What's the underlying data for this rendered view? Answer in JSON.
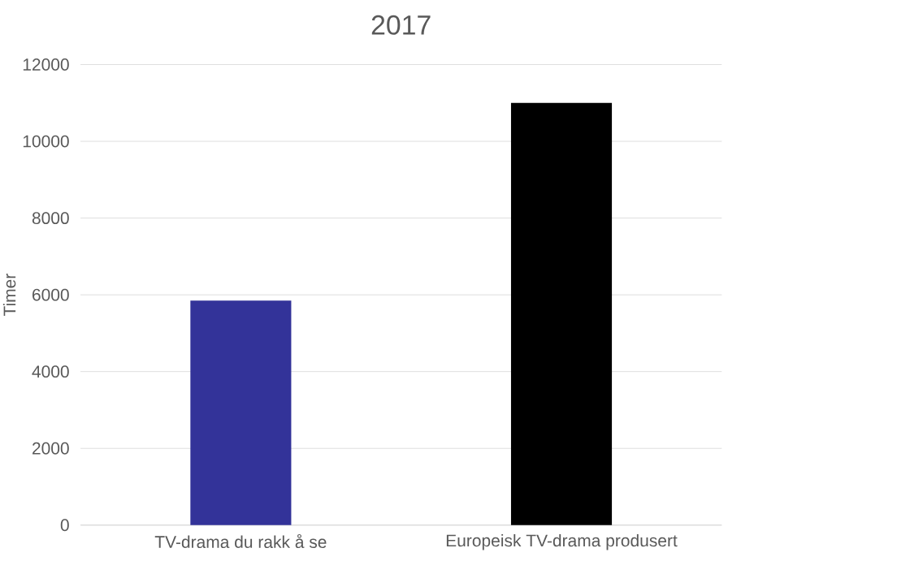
{
  "chart_data": {
    "type": "bar",
    "title": "2017",
    "ylabel": "Timer",
    "categories": [
      "TV-drama du rakk å se",
      "Europeisk TV-drama produsert"
    ],
    "values": [
      5850,
      11000
    ],
    "colors": [
      "#333399",
      "#000000"
    ],
    "ylim": [
      0,
      12000
    ],
    "yticks": [
      0,
      2000,
      4000,
      6000,
      8000,
      10000,
      12000
    ],
    "grid": "y"
  }
}
